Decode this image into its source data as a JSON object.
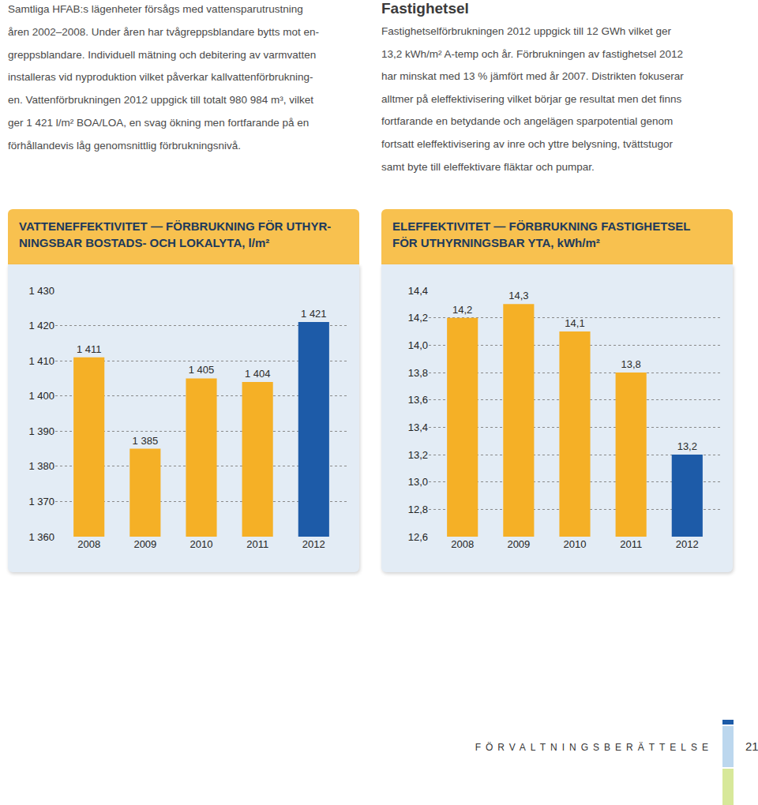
{
  "document": {
    "left_paragraph": [
      "Samtliga HFAB:s lägenheter försågs med vattensparutrustning",
      "åren 2002–2008. Under åren har tvågreppsblandare bytts mot en-",
      "greppsblandare. Individuell mätning och debitering av varmvatten",
      "installeras vid nyproduktion vilket påverkar kallvattenförbrukning-",
      "en. Vattenförbrukningen 2012 uppgick till totalt 980 984 m³, vilket",
      "ger 1 421 l/m² BOA/LOA, en svag ökning men fortfarande på en",
      "förhållandevis låg genomsnittlig förbrukningsnivå."
    ],
    "right_heading": "Fastighetsel",
    "right_paragraph": [
      "Fastighetselförbrukningen 2012 uppgick till 12 GWh vilket ger",
      "13,2 kWh/m² A-temp och år. Förbrukningen av fastighetsel 2012",
      "har minskat med 13 % jämfört med år 2007. Distrikten fokuserar",
      "alltmer på eleffektivisering vilket börjar ge resultat men det finns",
      "fortfarande en betydande och angelägen sparpotential genom",
      "fortsatt eleffektivisering av inre och yttre belysning, tvättstugor",
      "samt byte till eleffektivare fläktar och pumpar."
    ],
    "footer": {
      "section": "FÖRVALTNINGSBERÄTTELSE",
      "page": "21"
    }
  },
  "chart_data": [
    {
      "type": "bar",
      "title": "VATTENEFFEKTIVITET — FÖRBRUKNING FÖR UTHYR-\nNINGSBAR BOSTADS- OCH LOKALYTA, l/m²",
      "categories": [
        "2008",
        "2009",
        "2010",
        "2011",
        "2012"
      ],
      "values": [
        1411,
        1385,
        1405,
        1404,
        1421
      ],
      "value_labels": [
        "1 411",
        "1 385",
        "1 405",
        "1 404",
        "1 421"
      ],
      "colors": [
        "#f5b026",
        "#f5b026",
        "#f5b026",
        "#f5b026",
        "#1d5ba8"
      ],
      "ylim": [
        1360,
        1430
      ],
      "yticks": [
        {
          "value": 1360,
          "label": "1 360"
        },
        {
          "value": 1370,
          "label": "1 370"
        },
        {
          "value": 1380,
          "label": "1 380"
        },
        {
          "value": 1390,
          "label": "1 390"
        },
        {
          "value": 1400,
          "label": "1 400"
        },
        {
          "value": 1410,
          "label": "1 410"
        },
        {
          "value": 1420,
          "label": "1 420"
        },
        {
          "value": 1430,
          "label": "1 430"
        }
      ],
      "grid": true,
      "data_labels": true
    },
    {
      "type": "bar",
      "title": "ELEFFEKTIVITET — FÖRBRUKNING FASTIGHETSEL\nFÖR UTHYRNINGSBAR YTA, kWh/m²",
      "categories": [
        "2008",
        "2009",
        "2010",
        "2011",
        "2012"
      ],
      "values": [
        14.2,
        14.3,
        14.1,
        13.8,
        13.2
      ],
      "value_labels": [
        "14,2",
        "14,3",
        "14,1",
        "13,8",
        "13,2"
      ],
      "colors": [
        "#f5b026",
        "#f5b026",
        "#f5b026",
        "#f5b026",
        "#1d5ba8"
      ],
      "ylim": [
        12.6,
        14.4
      ],
      "yticks": [
        {
          "value": 12.6,
          "label": "12,6"
        },
        {
          "value": 12.8,
          "label": "12,8"
        },
        {
          "value": 13.0,
          "label": "13,0"
        },
        {
          "value": 13.2,
          "label": "13,2"
        },
        {
          "value": 13.4,
          "label": "13,4"
        },
        {
          "value": 13.6,
          "label": "13,6"
        },
        {
          "value": 13.8,
          "label": "13,8"
        },
        {
          "value": 14.0,
          "label": "14,0"
        },
        {
          "value": 14.2,
          "label": "14,2"
        },
        {
          "value": 14.4,
          "label": "14,4"
        }
      ],
      "grid": true,
      "data_labels": true
    }
  ]
}
